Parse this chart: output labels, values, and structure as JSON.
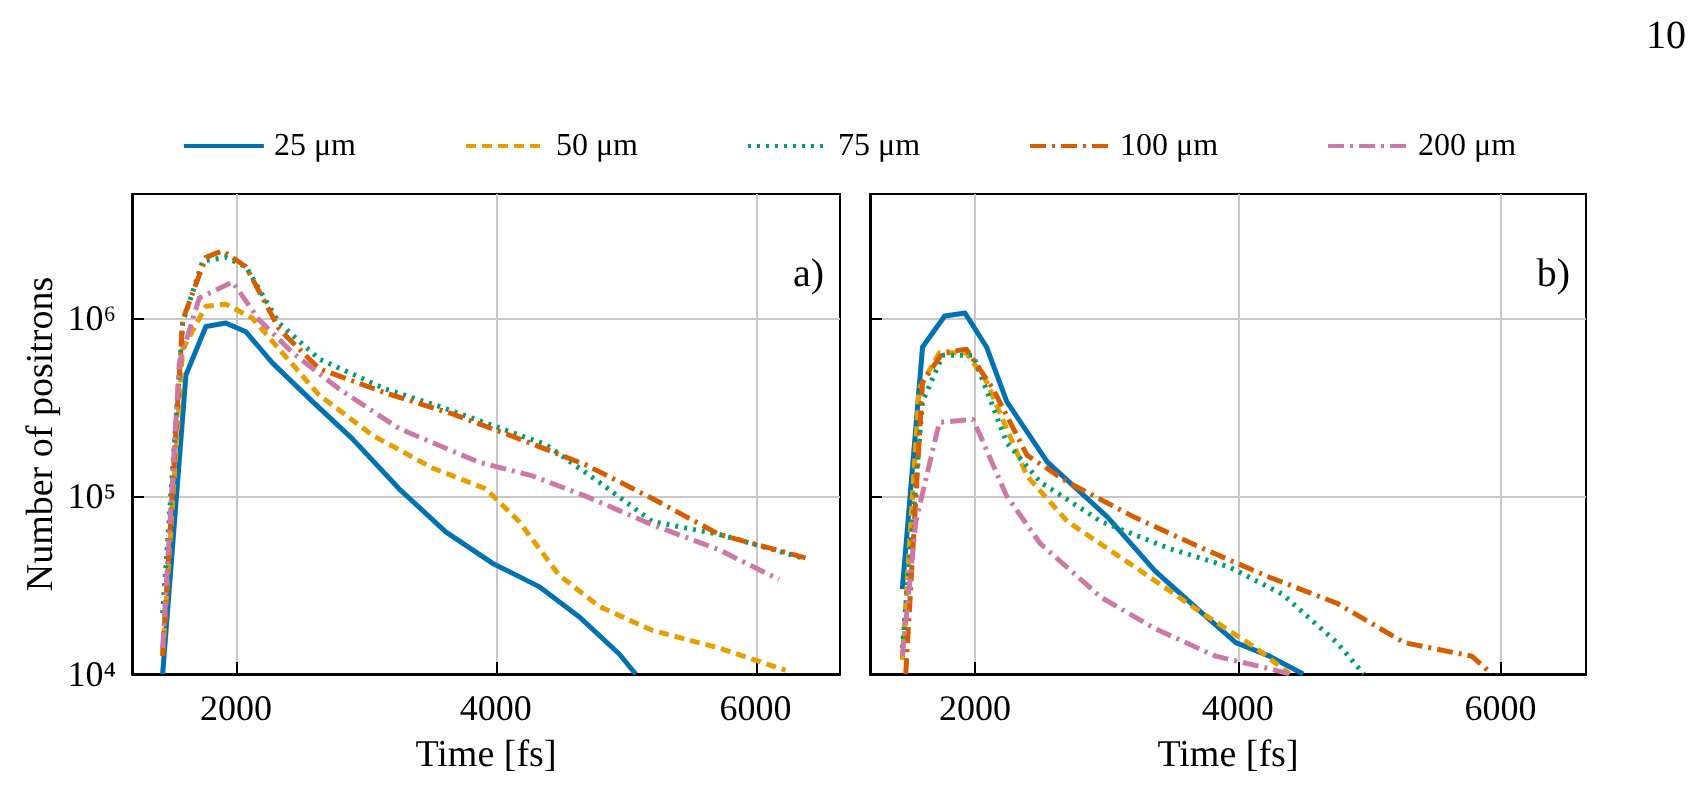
{
  "chart_data": [
    {
      "type": "line",
      "xlabel": "Time [fs]",
      "ylabel": "Number of positrons",
      "annotations": [
        "a)"
      ],
      "xlim": [
        1200,
        6650
      ],
      "xticks": [
        2000,
        4000,
        6000
      ],
      "ylim": [
        10000,
        5000000
      ],
      "yticks": [
        {
          "value": 10000,
          "label": "10⁴"
        },
        {
          "value": 100000,
          "label": "10⁵"
        },
        {
          "value": 1000000,
          "label": "10⁶"
        }
      ],
      "log": "y",
      "grid": true,
      "legend": "top",
      "series": [
        {
          "name": "25 μm",
          "color": "#0072b2",
          "line_style": "solid",
          "x": [
            1436,
            1615,
            1769,
            1923,
            2077,
            2282,
            2590,
            2897,
            3256,
            3615,
            3974,
            4333,
            4641,
            4949,
            5077
          ],
          "values": [
            10000,
            480000,
            900000,
            940000,
            840000,
            560000,
            340000,
            210000,
            110000,
            63000,
            42000,
            31000,
            21000,
            13000,
            10000
          ]
        },
        {
          "name": "50 μm",
          "color": "#e69f00",
          "line_style": "dashed",
          "x": [
            1436,
            1590,
            1769,
            1923,
            2128,
            2333,
            2641,
            3051,
            3513,
            3923,
            4180,
            4487,
            4795,
            5205,
            5718,
            6231
          ],
          "values": [
            13000,
            670000,
            1170000,
            1200000,
            1000000,
            670000,
            370000,
            220000,
            144000,
            110000,
            72000,
            36000,
            24000,
            17600,
            14000,
            10500
          ]
        },
        {
          "name": "75 μm",
          "color": "#009e73",
          "line_style": "dotted",
          "x": [
            1436,
            1590,
            1744,
            1923,
            2077,
            2333,
            2641,
            3154,
            3564,
            3974,
            4385,
            4795,
            5205,
            5718,
            6359
          ],
          "values": [
            22000,
            940000,
            2100000,
            2200000,
            1950000,
            940000,
            590000,
            400000,
            320000,
            250000,
            195000,
            120000,
            72000,
            61000,
            45000
          ]
        },
        {
          "name": "100 μm",
          "color": "#d55e00",
          "line_style": "dashdot",
          "x": [
            1436,
            1590,
            1769,
            1897,
            2077,
            2333,
            2641,
            3154,
            3667,
            4180,
            4692,
            5205,
            5718,
            6385
          ],
          "values": [
            12600,
            980000,
            2200000,
            2400000,
            1950000,
            870000,
            520000,
            380000,
            290000,
            210000,
            150000,
            97000,
            61000,
            45000
          ]
        },
        {
          "name": "200 μm",
          "color": "#cc79a7",
          "line_style": "dashdot",
          "x": [
            1436,
            1564,
            1718,
            1974,
            2179,
            2436,
            2795,
            3256,
            3872,
            4282,
            4692,
            5205,
            5718,
            6180
          ],
          "values": [
            14000,
            560000,
            1300000,
            1600000,
            980000,
            640000,
            400000,
            240000,
            155000,
            130000,
            100000,
            69000,
            50000,
            34000
          ]
        }
      ]
    },
    {
      "type": "line",
      "xlabel": "Time [fs]",
      "annotations": [
        "b)",
        "10"
      ],
      "xlim": [
        1200,
        6650
      ],
      "xticks": [
        2000,
        4000,
        6000
      ],
      "ylim": [
        10000,
        5000000
      ],
      "yticks": [
        {
          "value": 10000,
          "label": null
        },
        {
          "value": 100000,
          "label": null
        },
        {
          "value": 1000000,
          "label": null
        }
      ],
      "log": "y",
      "grid": true,
      "tick_labels": "x",
      "series": [
        {
          "color": "#0072b2",
          "line_style": "solid",
          "x": [
            1446,
            1600,
            1769,
            1923,
            2087,
            2241,
            2549,
            3010,
            3369,
            3728,
            3985,
            4241,
            4497
          ],
          "values": [
            30000,
            690000,
            1030000,
            1070000,
            690000,
            340000,
            156000,
            76000,
            38000,
            22000,
            15000,
            12600,
            10000
          ]
        },
        {
          "color": "#e69f00",
          "line_style": "dashed",
          "x": [
            1446,
            1574,
            1728,
            1933,
            2087,
            2395,
            2703,
            3215,
            3728,
            4138,
            4395
          ],
          "values": [
            12000,
            400000,
            640000,
            640000,
            440000,
            130000,
            72000,
            40000,
            22000,
            14000,
            10000
          ]
        },
        {
          "color": "#009e73",
          "line_style": "dotted",
          "x": [
            1446,
            1600,
            1754,
            1985,
            2241,
            2497,
            2959,
            3472,
            3933,
            4343,
            4754,
            4959
          ],
          "values": [
            14000,
            340000,
            620000,
            620000,
            200000,
            120000,
            72000,
            51000,
            40000,
            28000,
            15000,
            10000
          ]
        },
        {
          "color": "#d55e00",
          "line_style": "dashdot",
          "x": [
            1472,
            1600,
            1754,
            1933,
            2138,
            2395,
            2703,
            3215,
            3728,
            4241,
            4754,
            5267,
            5780,
            5933
          ],
          "values": [
            10000,
            440000,
            640000,
            670000,
            400000,
            170000,
            120000,
            76000,
            51000,
            35000,
            25000,
            15000,
            12600,
            10000
          ]
        },
        {
          "color": "#cc79a7",
          "line_style": "dashdot",
          "x": [
            1446,
            1549,
            1728,
            1985,
            2241,
            2497,
            2959,
            3369,
            3831,
            4241,
            4395
          ],
          "values": [
            12600,
            72000,
            260000,
            270000,
            100000,
            54000,
            27000,
            18000,
            12600,
            10700,
            10000
          ]
        }
      ]
    }
  ]
}
